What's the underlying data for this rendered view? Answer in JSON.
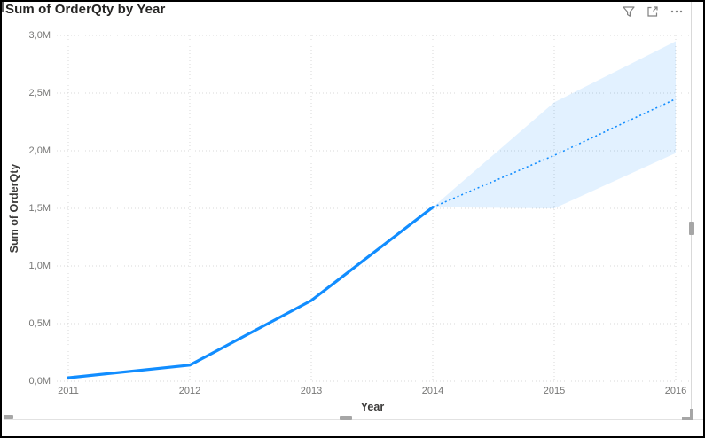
{
  "window": {
    "title": "Sum of OrderQty by Year"
  },
  "header": {
    "icons": [
      {
        "name": "filter-icon",
        "glyph": "funnel"
      },
      {
        "name": "focus-mode-icon",
        "glyph": "expand-arrow-square"
      },
      {
        "name": "more-options-icon",
        "glyph": "ellipsis"
      }
    ]
  },
  "palette": {
    "line_blue": "#118DFF",
    "forecast_band_fill": "rgba(17,141,255,0.12)",
    "gridline": "#d8d8d8",
    "tick_text": "#777776",
    "axis_title_text": "#3b3a39",
    "title_text": "#252423",
    "icon_gray": "#808080",
    "handle_gray": "#a6a6a6"
  },
  "chart_data": {
    "type": "line",
    "title": "Sum of OrderQty by Year",
    "xlabel": "Year",
    "ylabel": "Sum of OrderQty",
    "units": "millions",
    "xlim": [
      2011,
      2016
    ],
    "ylim": [
      0,
      3
    ],
    "grid": "dotted",
    "x_ticks": [
      {
        "label": "2011",
        "value": 2011
      },
      {
        "label": "2012",
        "value": 2012
      },
      {
        "label": "2013",
        "value": 2013
      },
      {
        "label": "2014",
        "value": 2014
      },
      {
        "label": "2015",
        "value": 2015
      },
      {
        "label": "2016",
        "value": 2016
      }
    ],
    "y_ticks": [
      {
        "label": "0,0M",
        "value": 0
      },
      {
        "label": "0,5M",
        "value": 0.5
      },
      {
        "label": "1,0M",
        "value": 1
      },
      {
        "label": "1,5M",
        "value": 1.5
      },
      {
        "label": "2,0M",
        "value": 2
      },
      {
        "label": "2,5M",
        "value": 2.5
      },
      {
        "label": "3,0M",
        "value": 3
      }
    ],
    "series": [
      {
        "name": "actual",
        "style": "solid-line",
        "color": "#118DFF",
        "x": [
          2011,
          2012,
          2013,
          2014
        ],
        "values": [
          0.03,
          0.14,
          0.7,
          1.51
        ]
      },
      {
        "name": "forecast",
        "style": "dotted-line",
        "color": "#118DFF",
        "x": [
          2014,
          2015,
          2016
        ],
        "values": [
          1.51,
          1.96,
          2.45
        ]
      },
      {
        "name": "confidence-band",
        "style": "area",
        "color": "rgba(17,141,255,0.12)",
        "x": [
          2014,
          2015,
          2016
        ],
        "upper": [
          1.51,
          2.42,
          2.95
        ],
        "lower": [
          1.51,
          1.5,
          1.98
        ]
      }
    ]
  }
}
